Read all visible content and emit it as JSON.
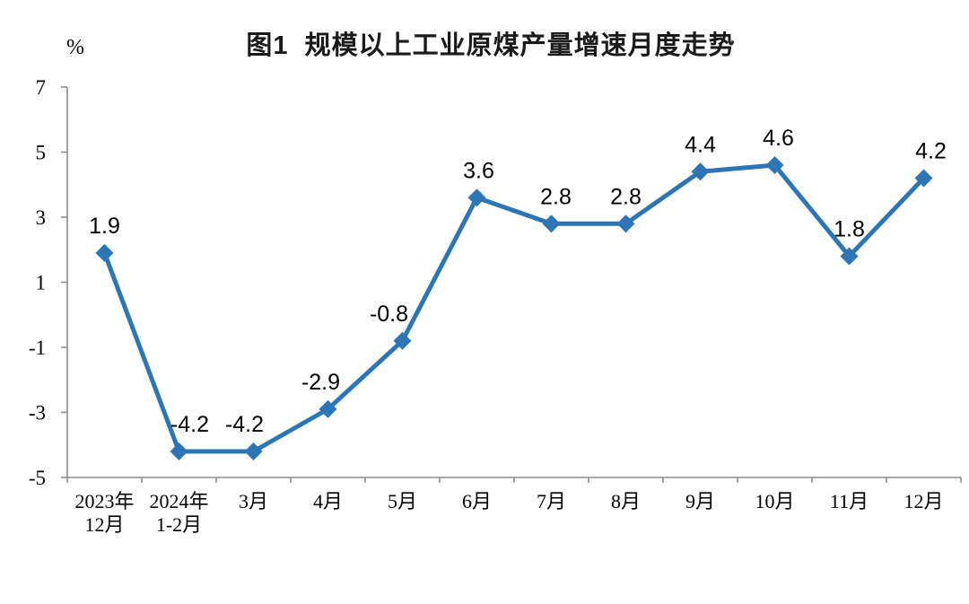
{
  "chart_data": {
    "type": "line",
    "title": "图1  规模以上工业原煤产量增速月度走势",
    "unit_label": "%",
    "categories": [
      "2023年\n12月",
      "2024年\n1-2月",
      "3月",
      "4月",
      "5月",
      "6月",
      "7月",
      "8月",
      "9月",
      "10月",
      "11月",
      "12月"
    ],
    "values": [
      1.9,
      -4.2,
      -4.2,
      -2.9,
      -0.8,
      3.6,
      2.8,
      2.8,
      4.4,
      4.6,
      1.8,
      4.2
    ],
    "data_labels": [
      "1.9",
      "-4.2",
      "-4.2",
      "-2.9",
      "-0.8",
      "3.6",
      "2.8",
      "2.8",
      "4.4",
      "4.6",
      "1.8",
      "4.2"
    ],
    "ylim": [
      -5,
      7
    ],
    "yticks": [
      7,
      5,
      3,
      1,
      -1,
      -3,
      -5
    ],
    "grid": false,
    "legend": "none",
    "line_color": "#2E75B6",
    "marker": "diamond",
    "axis_color": "#8E8E8E",
    "text_color": "#000000",
    "label_dx": [
      0,
      12,
      -10,
      -8,
      -15,
      2,
      5,
      0,
      0,
      4,
      0,
      8
    ]
  }
}
